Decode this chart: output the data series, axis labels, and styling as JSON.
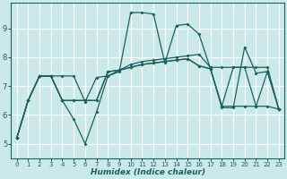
{
  "xlabel": "Humidex (Indice chaleur)",
  "bg_color": "#cce9e9",
  "grid_color": "#ffffff",
  "line_color": "#1a6060",
  "xlim": [
    -0.5,
    23.5
  ],
  "ylim": [
    4.5,
    9.9
  ],
  "xticks": [
    0,
    1,
    2,
    3,
    4,
    5,
    6,
    7,
    8,
    9,
    10,
    11,
    12,
    13,
    14,
    15,
    16,
    17,
    18,
    19,
    20,
    21,
    22,
    23
  ],
  "yticks": [
    5,
    6,
    7,
    8,
    9
  ],
  "series": [
    [
      5.2,
      6.5,
      7.35,
      7.35,
      6.5,
      5.85,
      5.0,
      6.1,
      7.35,
      7.5,
      9.55,
      9.55,
      9.5,
      7.8,
      9.1,
      9.15,
      8.8,
      7.6,
      6.25,
      6.25,
      8.35,
      7.45,
      7.5,
      6.2
    ],
    [
      5.2,
      6.5,
      7.35,
      7.35,
      7.35,
      7.35,
      6.45,
      7.3,
      7.35,
      7.55,
      7.75,
      7.85,
      7.9,
      7.95,
      8.0,
      8.05,
      8.1,
      7.65,
      7.65,
      7.65,
      7.65,
      7.65,
      7.65,
      6.2
    ],
    [
      5.2,
      6.5,
      7.35,
      7.35,
      6.5,
      6.5,
      6.5,
      6.5,
      7.5,
      7.55,
      7.65,
      7.75,
      7.8,
      7.85,
      7.9,
      7.95,
      7.7,
      7.6,
      6.3,
      6.3,
      6.3,
      6.3,
      6.3,
      6.2
    ],
    [
      5.2,
      6.5,
      7.35,
      7.35,
      6.5,
      6.5,
      6.5,
      6.5,
      7.5,
      7.55,
      7.65,
      7.75,
      7.8,
      7.85,
      7.9,
      7.95,
      7.7,
      7.6,
      6.3,
      7.65,
      7.65,
      6.3,
      7.5,
      6.2
    ]
  ],
  "marker_size": 2.0,
  "line_width": 0.9,
  "xlabel_fontsize": 6.5,
  "xlabel_fontstyle": "italic",
  "xlabel_fontweight": "bold",
  "tick_fontsize_x": 5.0,
  "tick_fontsize_y": 6.0
}
